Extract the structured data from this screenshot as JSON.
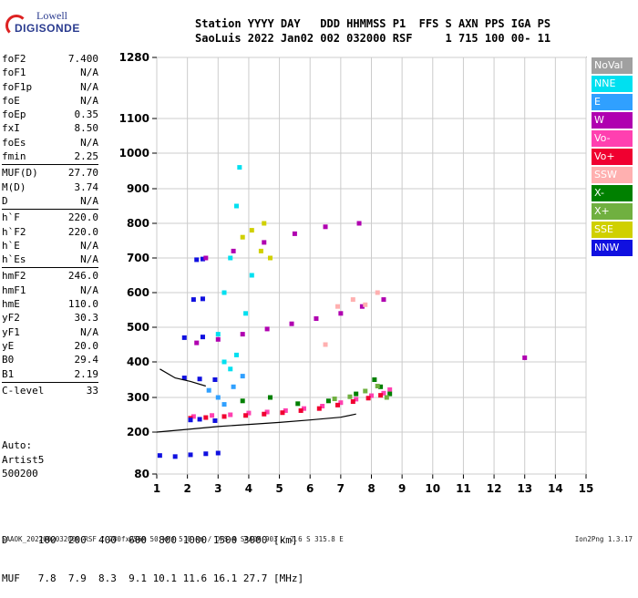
{
  "logo": {
    "line1": "Lowell",
    "line2": "DIGISONDE"
  },
  "header": {
    "line1": "Station YYYY DAY   DDD HHMMSS P1  FFS S AXN PPS IGA PS",
    "line2": "SaoLuis 2022 Jan02 002 032000 RSF     1 715 100 00- 11"
  },
  "params": [
    [
      {
        "k": "foF2",
        "v": "7.400"
      },
      {
        "k": "foF1",
        "v": "N/A"
      },
      {
        "k": "foF1p",
        "v": "N/A"
      },
      {
        "k": "foE",
        "v": "N/A"
      },
      {
        "k": "foEp",
        "v": "0.35"
      },
      {
        "k": "fxI",
        "v": "8.50"
      },
      {
        "k": "foEs",
        "v": "N/A"
      },
      {
        "k": "fmin",
        "v": "2.25"
      }
    ],
    [
      {
        "k": "MUF(D)",
        "v": "27.70"
      },
      {
        "k": "M(D)",
        "v": "3.74"
      },
      {
        "k": "D",
        "v": "N/A"
      }
    ],
    [
      {
        "k": "h`F",
        "v": "220.0"
      },
      {
        "k": "h`F2",
        "v": "220.0"
      },
      {
        "k": "h`E",
        "v": "N/A"
      },
      {
        "k": "h`Es",
        "v": "N/A"
      }
    ],
    [
      {
        "k": "hmF2",
        "v": "246.0"
      },
      {
        "k": "hmF1",
        "v": "N/A"
      },
      {
        "k": "hmE",
        "v": "110.0"
      },
      {
        "k": "yF2",
        "v": "30.3"
      },
      {
        "k": "yF1",
        "v": "N/A"
      },
      {
        "k": "yE",
        "v": "20.0"
      },
      {
        "k": "B0",
        "v": "29.4"
      },
      {
        "k": "B1",
        "v": "2.19"
      }
    ],
    [
      {
        "k": "C-level",
        "v": "33"
      }
    ]
  ],
  "auto": {
    "line1": "Auto:",
    "line2": "Artist5",
    "line3": "500200"
  },
  "legend": [
    {
      "label": "NoVal",
      "color": "#a0a0a0"
    },
    {
      "label": "NNE",
      "color": "#00e0f0"
    },
    {
      "label": "E",
      "color": "#30a0ff"
    },
    {
      "label": "W",
      "color": "#b000b0"
    },
    {
      "label": "Vo-",
      "color": "#ff40b0"
    },
    {
      "label": "Vo+",
      "color": "#f00030"
    },
    {
      "label": "SSW",
      "color": "#ffb0b0"
    },
    {
      "label": "X-",
      "color": "#008000"
    },
    {
      "label": "X+",
      "color": "#70b040"
    },
    {
      "label": "SSE",
      "color": "#d0d000"
    },
    {
      "label": "NNW",
      "color": "#1010e0"
    }
  ],
  "table": {
    "row1": "D     100  200  400  600  800 1000 1500 3000 [km]",
    "row2": "MUF   7.8  7.9  8.3  9.1 10.1 11.6 16.1 27.7 [MHz]"
  },
  "footer": "SAAOK_2022002032000.RSF / 280fx256h 50 kHz 5.0 km / DPS-4 SAAOK 903 / 2.6 S 315.8 E",
  "version": "Ion2Png 1.3.17",
  "chart_data": {
    "type": "scatter",
    "title": "",
    "xlabel": "",
    "ylabel": "",
    "xlim": [
      1,
      15
    ],
    "ylim": [
      80,
      1280
    ],
    "x_ticks": [
      1,
      2,
      3,
      4,
      5,
      6,
      7,
      8,
      9,
      10,
      11,
      12,
      13,
      14,
      15
    ],
    "y_ticks": [
      80,
      200,
      300,
      400,
      500,
      600,
      700,
      800,
      900,
      1000,
      1100,
      1280
    ],
    "grid": true,
    "series": [
      {
        "color": "#ff40b0",
        "points": [
          [
            2.2,
            245
          ],
          [
            2.8,
            248
          ],
          [
            3.4,
            250
          ],
          [
            4,
            255
          ],
          [
            4.6,
            258
          ],
          [
            5.2,
            262
          ],
          [
            5.8,
            268
          ],
          [
            6.4,
            275
          ],
          [
            7,
            285
          ],
          [
            7.5,
            295
          ],
          [
            8,
            305
          ],
          [
            8.4,
            312
          ],
          [
            8.6,
            322
          ]
        ]
      },
      {
        "color": "#f00030",
        "points": [
          [
            2.1,
            240
          ],
          [
            2.6,
            242
          ],
          [
            3.2,
            245
          ],
          [
            3.9,
            248
          ],
          [
            4.5,
            252
          ],
          [
            5.1,
            256
          ],
          [
            5.7,
            262
          ],
          [
            6.3,
            268
          ],
          [
            6.9,
            278
          ],
          [
            7.4,
            288
          ],
          [
            7.9,
            298
          ],
          [
            8.3,
            306
          ]
        ]
      },
      {
        "color": "#1010e0",
        "points": [
          [
            1.1,
            133
          ],
          [
            1.6,
            130
          ],
          [
            2.1,
            135
          ],
          [
            2.6,
            138
          ],
          [
            3,
            140
          ],
          [
            2.1,
            235
          ],
          [
            2.4,
            237
          ],
          [
            2.9,
            233
          ],
          [
            1.9,
            470
          ],
          [
            2.5,
            472
          ],
          [
            2.2,
            580
          ],
          [
            2.5,
            582
          ],
          [
            2.3,
            695
          ],
          [
            2.5,
            697
          ],
          [
            1.9,
            355
          ],
          [
            2.4,
            352
          ],
          [
            2.9,
            350
          ]
        ]
      },
      {
        "color": "#008000",
        "points": [
          [
            3.8,
            290
          ],
          [
            4.7,
            300
          ],
          [
            5.6,
            282
          ],
          [
            6.6,
            290
          ],
          [
            7.5,
            310
          ],
          [
            8.1,
            350
          ],
          [
            8.3,
            330
          ],
          [
            8.6,
            310
          ]
        ]
      },
      {
        "color": "#70b040",
        "points": [
          [
            6.8,
            296
          ],
          [
            7.3,
            302
          ],
          [
            7.8,
            318
          ],
          [
            8.2,
            332
          ],
          [
            8.5,
            300
          ]
        ]
      },
      {
        "color": "#b000b0",
        "points": [
          [
            2.3,
            455
          ],
          [
            3,
            465
          ],
          [
            3.8,
            480
          ],
          [
            4.6,
            495
          ],
          [
            5.4,
            510
          ],
          [
            6.2,
            525
          ],
          [
            7,
            540
          ],
          [
            7.7,
            560
          ],
          [
            8.4,
            580
          ],
          [
            2.6,
            700
          ],
          [
            3.5,
            720
          ],
          [
            4.5,
            745
          ],
          [
            5.5,
            770
          ],
          [
            6.5,
            790
          ],
          [
            7.6,
            800
          ],
          [
            13.0,
            412
          ]
        ]
      },
      {
        "color": "#00e0f0",
        "points": [
          [
            3,
            480
          ],
          [
            3.2,
            600
          ],
          [
            3.4,
            700
          ],
          [
            3.6,
            850
          ],
          [
            3.7,
            960
          ],
          [
            3.2,
            400
          ],
          [
            3.4,
            380
          ],
          [
            3.6,
            420
          ],
          [
            3.9,
            540
          ],
          [
            4.1,
            650
          ]
        ]
      },
      {
        "color": "#d0d000",
        "points": [
          [
            4.1,
            780
          ],
          [
            4.4,
            720
          ],
          [
            4.7,
            700
          ],
          [
            3.8,
            760
          ],
          [
            4.5,
            800
          ]
        ]
      },
      {
        "color": "#ffb0b0",
        "points": [
          [
            6.5,
            450
          ],
          [
            6.9,
            560
          ],
          [
            7.4,
            580
          ],
          [
            7.8,
            565
          ],
          [
            8.2,
            600
          ]
        ]
      },
      {
        "color": "#30a0ff",
        "points": [
          [
            3.0,
            300
          ],
          [
            3.2,
            280
          ],
          [
            3.5,
            330
          ],
          [
            3.8,
            360
          ],
          [
            2.7,
            320
          ]
        ]
      }
    ],
    "traces": [
      {
        "color": "#000",
        "points": [
          [
            1,
            200
          ],
          [
            2,
            208
          ],
          [
            3,
            216
          ],
          [
            4,
            222
          ],
          [
            5,
            228
          ],
          [
            6,
            235
          ],
          [
            7,
            243
          ],
          [
            7.5,
            252
          ]
        ]
      },
      {
        "color": "#000",
        "points": [
          [
            1.1,
            380
          ],
          [
            1.6,
            355
          ],
          [
            2.1,
            345
          ],
          [
            2.6,
            332
          ]
        ]
      }
    ]
  }
}
